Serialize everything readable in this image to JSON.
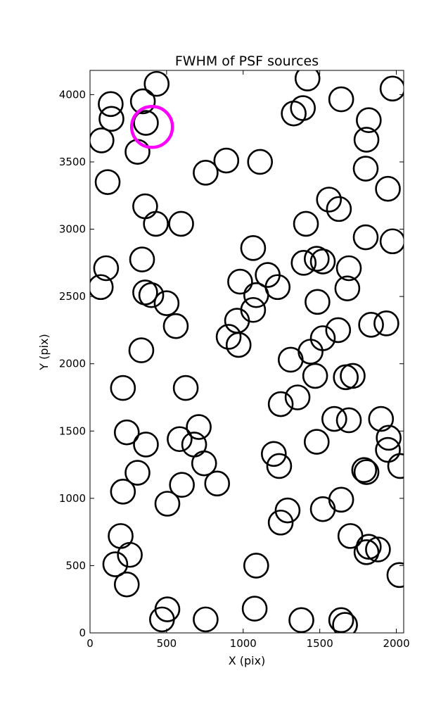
{
  "chart_data": {
    "type": "scatter",
    "title": "FWHM of PSF sources",
    "xlabel": "X (pix)",
    "ylabel": "Y (pix)",
    "xlim": [
      0,
      2048
    ],
    "ylim": [
      0,
      4180
    ],
    "xticks": [
      0,
      500,
      1000,
      1500,
      2000
    ],
    "yticks": [
      0,
      500,
      1000,
      1500,
      2000,
      2500,
      3000,
      3500,
      4000
    ],
    "grid": false,
    "legend": "none",
    "marker": "open-circle",
    "colors": {
      "normal": "#000000",
      "highlight": "#ff00ff"
    },
    "highlighted": {
      "x": 405,
      "y": 3760
    },
    "points": [
      [
        435,
        4080
      ],
      [
        135,
        3930
      ],
      [
        345,
        3950
      ],
      [
        140,
        3820
      ],
      [
        365,
        3790
      ],
      [
        75,
        3660
      ],
      [
        310,
        3575
      ],
      [
        890,
        3510
      ],
      [
        1110,
        3500
      ],
      [
        755,
        3420
      ],
      [
        115,
        3350
      ],
      [
        360,
        3170
      ],
      [
        430,
        3040
      ],
      [
        595,
        3040
      ],
      [
        1420,
        4120
      ],
      [
        1975,
        4045
      ],
      [
        1640,
        3965
      ],
      [
        1330,
        3860
      ],
      [
        1390,
        3900
      ],
      [
        1820,
        3810
      ],
      [
        1805,
        3665
      ],
      [
        1800,
        3450
      ],
      [
        1945,
        3300
      ],
      [
        1560,
        3220
      ],
      [
        1625,
        3150
      ],
      [
        1410,
        3040
      ],
      [
        1800,
        2940
      ],
      [
        1975,
        2910
      ],
      [
        1065,
        2860
      ],
      [
        340,
        2775
      ],
      [
        105,
        2710
      ],
      [
        1160,
        2660
      ],
      [
        980,
        2610
      ],
      [
        1225,
        2570
      ],
      [
        70,
        2570
      ],
      [
        360,
        2530
      ],
      [
        400,
        2510
      ],
      [
        1085,
        2510
      ],
      [
        500,
        2450
      ],
      [
        1065,
        2400
      ],
      [
        560,
        2280
      ],
      [
        960,
        2320
      ],
      [
        905,
        2200
      ],
      [
        970,
        2140
      ],
      [
        335,
        2100
      ],
      [
        1395,
        2750
      ],
      [
        1480,
        2780
      ],
      [
        1520,
        2760
      ],
      [
        1690,
        2710
      ],
      [
        1680,
        2560
      ],
      [
        1485,
        2460
      ],
      [
        1520,
        2190
      ],
      [
        1620,
        2250
      ],
      [
        1835,
        2290
      ],
      [
        1935,
        2300
      ],
      [
        1440,
        2090
      ],
      [
        1310,
        2030
      ],
      [
        1470,
        1910
      ],
      [
        1670,
        1900
      ],
      [
        1715,
        1910
      ],
      [
        625,
        1820
      ],
      [
        215,
        1820
      ],
      [
        1355,
        1750
      ],
      [
        1245,
        1700
      ],
      [
        710,
        1530
      ],
      [
        240,
        1490
      ],
      [
        365,
        1400
      ],
      [
        585,
        1440
      ],
      [
        680,
        1400
      ],
      [
        1595,
        1590
      ],
      [
        1690,
        1580
      ],
      [
        1900,
        1590
      ],
      [
        1950,
        1450
      ],
      [
        1945,
        1360
      ],
      [
        2025,
        1240
      ],
      [
        1200,
        1330
      ],
      [
        1235,
        1240
      ],
      [
        1480,
        1420
      ],
      [
        745,
        1260
      ],
      [
        310,
        1190
      ],
      [
        215,
        1050
      ],
      [
        600,
        1100
      ],
      [
        830,
        1110
      ],
      [
        505,
        960
      ],
      [
        1790,
        1210
      ],
      [
        1805,
        1195
      ],
      [
        1640,
        990
      ],
      [
        1290,
        910
      ],
      [
        1245,
        820
      ],
      [
        1520,
        920
      ],
      [
        200,
        720
      ],
      [
        1700,
        720
      ],
      [
        1820,
        640
      ],
      [
        1880,
        620
      ],
      [
        1805,
        600
      ],
      [
        260,
        580
      ],
      [
        165,
        510
      ],
      [
        1085,
        500
      ],
      [
        2020,
        430
      ],
      [
        240,
        360
      ],
      [
        505,
        175
      ],
      [
        1075,
        180
      ],
      [
        470,
        100
      ],
      [
        755,
        100
      ],
      [
        1380,
        95
      ],
      [
        1640,
        95
      ],
      [
        1665,
        60
      ]
    ]
  }
}
